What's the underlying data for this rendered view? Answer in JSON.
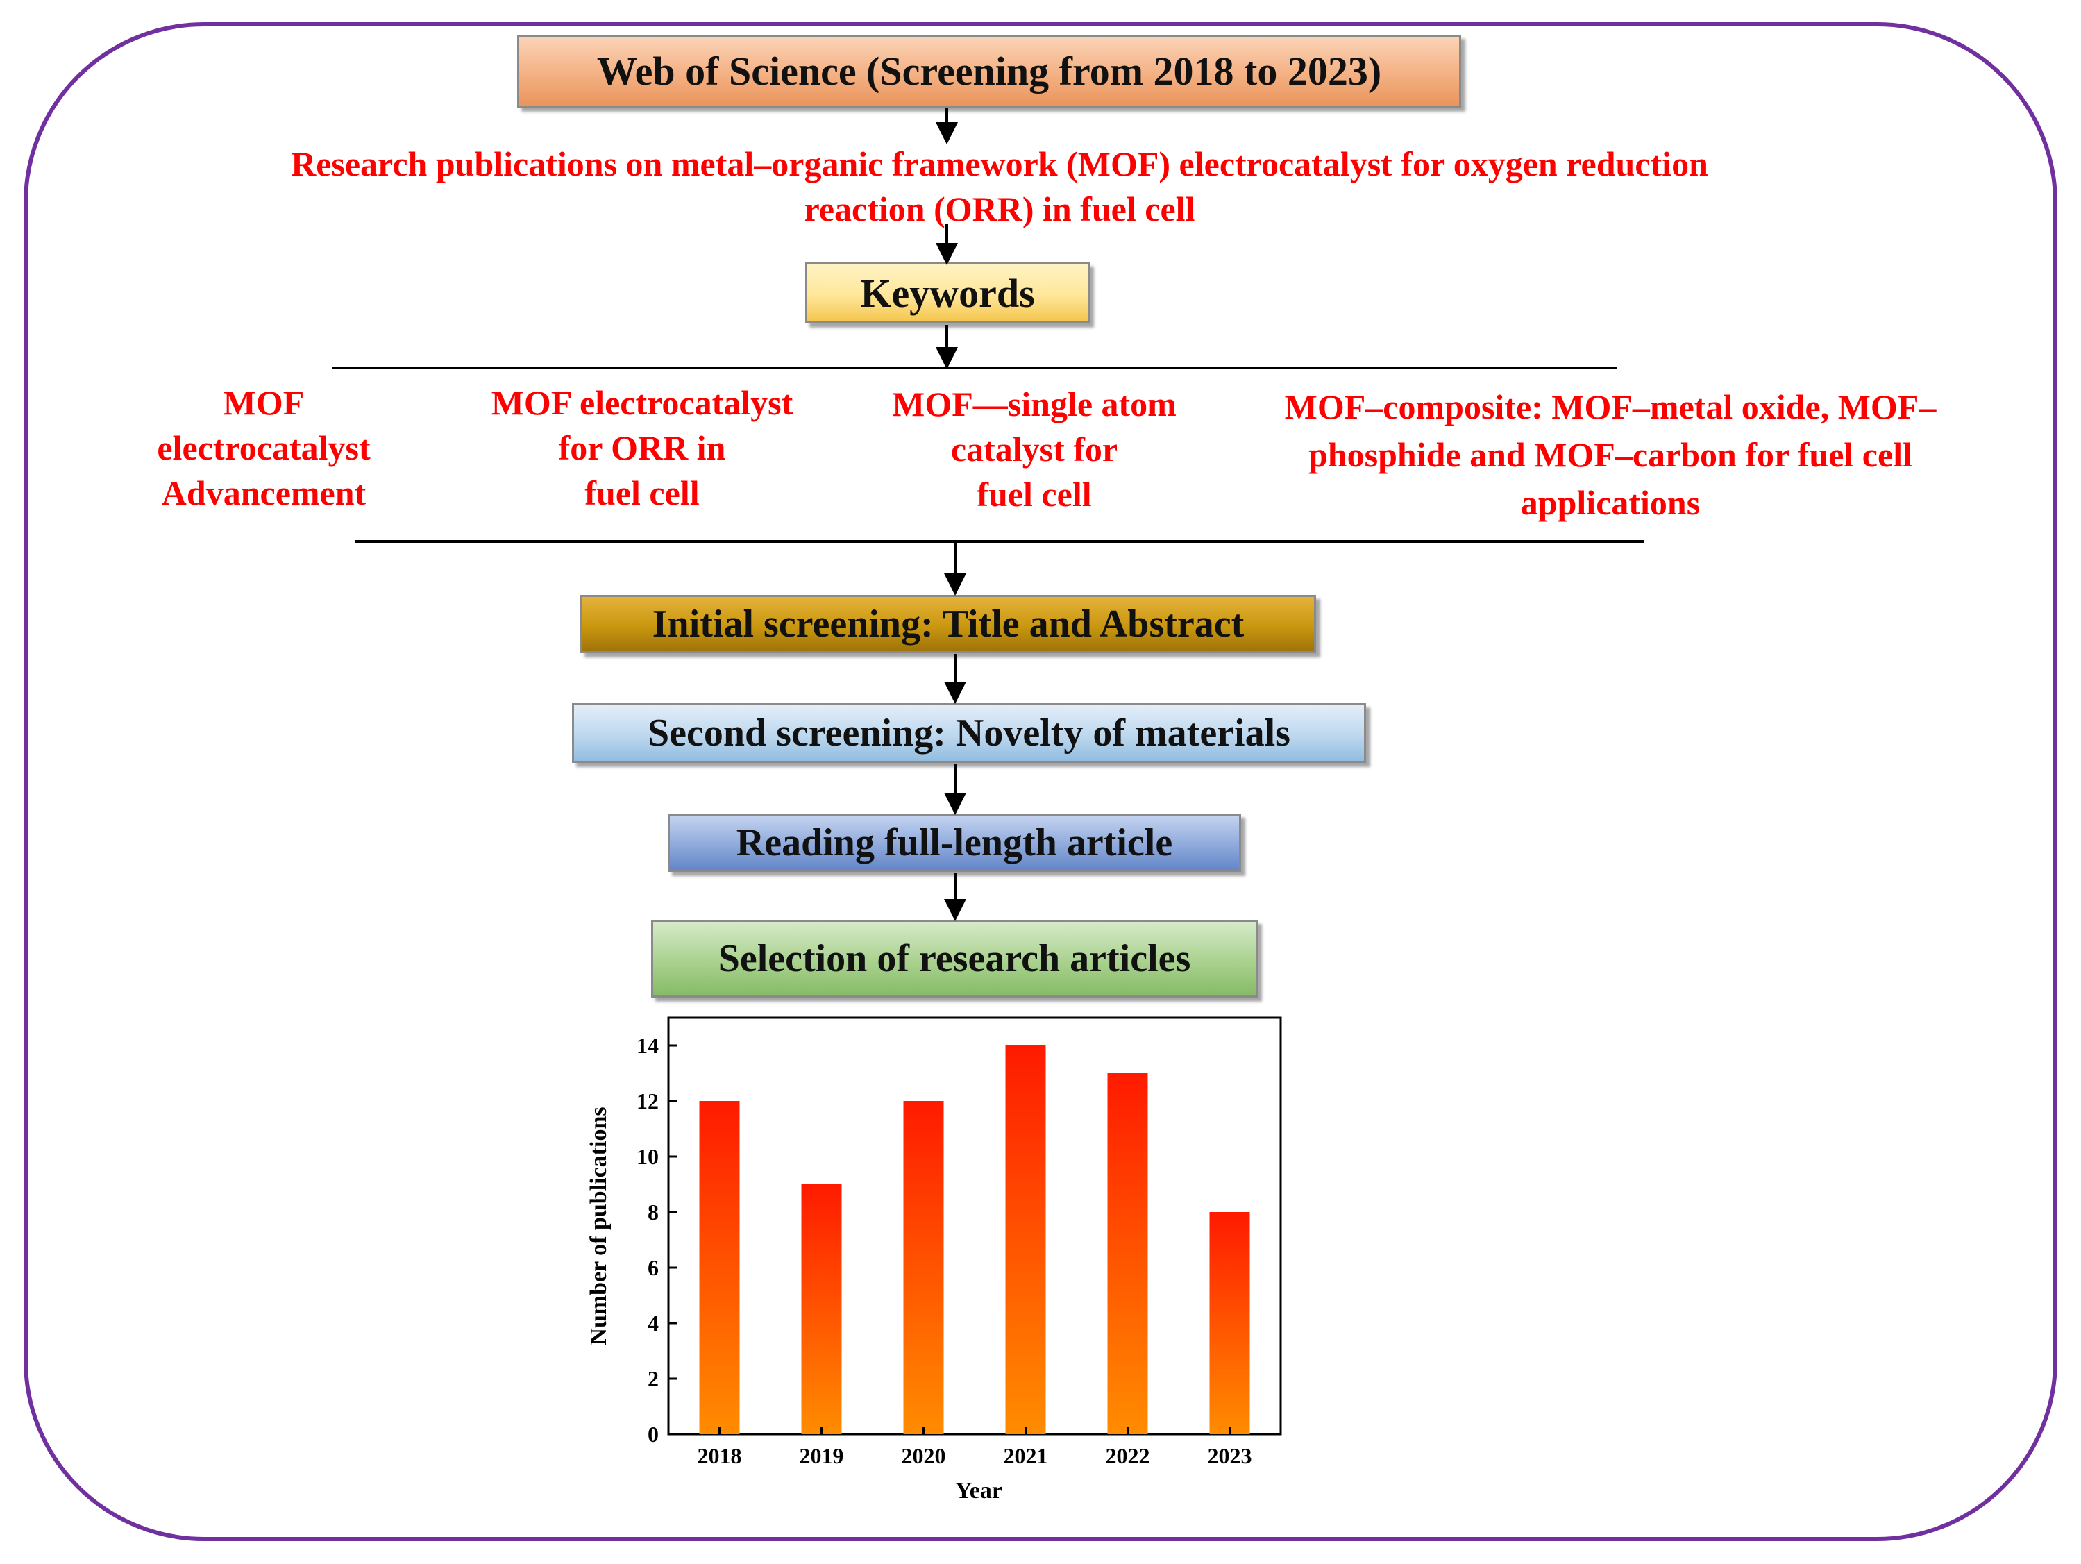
{
  "flow": {
    "source": "Web of Science (Screening from 2018 to 2023)",
    "topic_line1": "Research publications on metal–organic framework (MOF) electrocatalyst for oxygen reduction",
    "topic_line2": "reaction (ORR) in fuel cell",
    "keywords_label": "Keywords",
    "keywords": [
      [
        "MOF",
        "electrocatalyst",
        "Advancement"
      ],
      [
        "MOF electrocatalyst",
        "for ORR in",
        "fuel cell"
      ],
      [
        "MOF—single atom",
        "catalyst for",
        "fuel cell"
      ],
      [
        "MOF–composite: MOF–metal oxide, MOF–",
        "phosphide and MOF–carbon for fuel cell",
        "applications"
      ]
    ],
    "steps": [
      "Initial  screening:  Title  and  Abstract",
      "Second  screening:  Novelty  of  materials",
      "Reading  full-length  article",
      "Selection  of  research  articles"
    ]
  },
  "colors": {
    "frame": "#7030a0",
    "red_text": "#ff0000",
    "source_box": "#f4b183",
    "keywords_box": "#ffe699",
    "step1_box": "#c9970f",
    "step2_box": "#bdd7ee",
    "step3_box": "#8ea9db",
    "step4_box": "#a9d18e",
    "bar_top": "#ff1a00",
    "bar_bottom": "#ff8c00"
  },
  "chart_data": {
    "type": "bar",
    "categories": [
      "2018",
      "2019",
      "2020",
      "2021",
      "2022",
      "2023"
    ],
    "values": [
      12,
      9,
      12,
      14,
      13,
      8
    ],
    "xlabel": "Year",
    "ylabel": "Number of publications",
    "ylim": [
      0,
      15
    ],
    "yticks": [
      0,
      2,
      4,
      6,
      8,
      10,
      12,
      14
    ],
    "grid": false,
    "legend": "none"
  }
}
